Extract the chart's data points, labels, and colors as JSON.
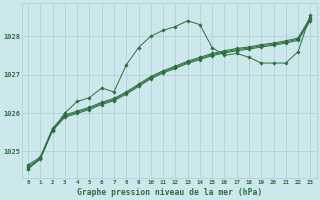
{
  "bg_color": "#cce8ec",
  "grid_color": "#aacfd4",
  "line_color": "#2d6e3e",
  "title": "Graphe pression niveau de la mer (hPa)",
  "xlim": [
    -0.5,
    23.5
  ],
  "ylim": [
    1024.3,
    1028.85
  ],
  "yticks": [
    1025,
    1026,
    1027,
    1028
  ],
  "xticks": [
    0,
    1,
    2,
    3,
    4,
    5,
    6,
    7,
    8,
    9,
    10,
    11,
    12,
    13,
    14,
    15,
    16,
    17,
    18,
    19,
    20,
    21,
    22,
    23
  ],
  "series_spiky": {
    "x": [
      0,
      1,
      2,
      3,
      4,
      5,
      6,
      7,
      8,
      9,
      10,
      11,
      12,
      13,
      14,
      15,
      16,
      17,
      18,
      19,
      20,
      21,
      22,
      23
    ],
    "y": [
      1024.55,
      1024.82,
      1025.55,
      1026.0,
      1026.3,
      1026.4,
      1026.65,
      1026.55,
      1027.25,
      1027.7,
      1028.0,
      1028.15,
      1028.25,
      1028.4,
      1028.3,
      1027.7,
      1027.5,
      1027.55,
      1027.45,
      1027.3,
      1027.3,
      1027.3,
      1027.6,
      1028.55
    ]
  },
  "series_lin1": {
    "x": [
      0,
      1,
      2,
      3,
      4,
      5,
      6,
      7,
      8,
      9,
      10,
      11,
      12,
      13,
      14,
      15,
      16,
      17,
      18,
      19,
      20,
      21,
      22,
      23
    ],
    "y": [
      1024.65,
      1024.85,
      1025.6,
      1025.95,
      1026.05,
      1026.15,
      1026.28,
      1026.38,
      1026.55,
      1026.75,
      1026.95,
      1027.1,
      1027.22,
      1027.35,
      1027.45,
      1027.55,
      1027.62,
      1027.68,
      1027.72,
      1027.78,
      1027.82,
      1027.88,
      1027.95,
      1028.5
    ]
  },
  "series_lin2": {
    "x": [
      0,
      1,
      2,
      3,
      4,
      5,
      6,
      7,
      8,
      9,
      10,
      11,
      12,
      13,
      14,
      15,
      16,
      17,
      18,
      19,
      20,
      21,
      22,
      23
    ],
    "y": [
      1024.6,
      1024.82,
      1025.57,
      1025.92,
      1026.02,
      1026.12,
      1026.25,
      1026.35,
      1026.52,
      1026.72,
      1026.92,
      1027.07,
      1027.19,
      1027.32,
      1027.42,
      1027.52,
      1027.59,
      1027.65,
      1027.69,
      1027.75,
      1027.79,
      1027.85,
      1027.92,
      1028.45
    ]
  },
  "series_lin3": {
    "x": [
      0,
      1,
      2,
      3,
      4,
      5,
      6,
      7,
      8,
      9,
      10,
      11,
      12,
      13,
      14,
      15,
      16,
      17,
      18,
      19,
      20,
      21,
      22,
      23
    ],
    "y": [
      1024.55,
      1024.8,
      1025.54,
      1025.89,
      1025.99,
      1026.09,
      1026.22,
      1026.32,
      1026.49,
      1026.69,
      1026.89,
      1027.04,
      1027.16,
      1027.29,
      1027.39,
      1027.49,
      1027.56,
      1027.62,
      1027.66,
      1027.72,
      1027.76,
      1027.82,
      1027.89,
      1028.4
    ]
  }
}
